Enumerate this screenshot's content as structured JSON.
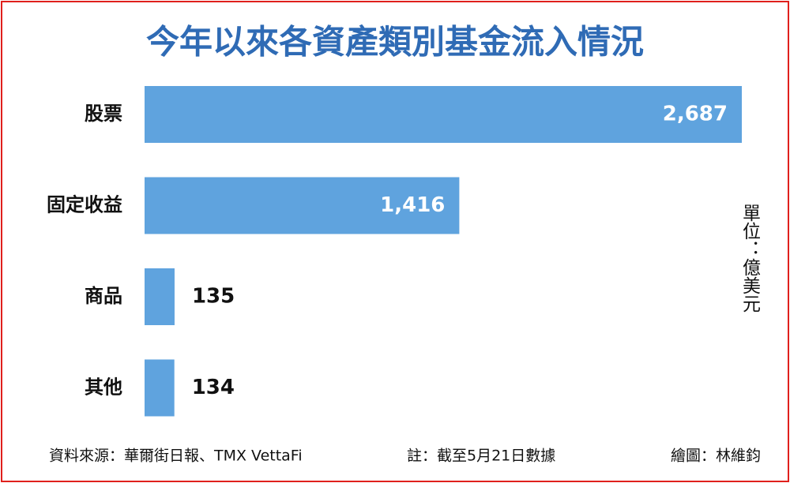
{
  "chart_data": {
    "type": "bar",
    "orientation": "horizontal",
    "title": "今年以來各資產類別基金流入情況",
    "unit": "單位：億美元",
    "categories": [
      "股票",
      "固定收益",
      "商品",
      "其他"
    ],
    "values": [
      2687,
      1416,
      135,
      134
    ],
    "value_labels": [
      "2,687",
      "1,416",
      "135",
      "134"
    ],
    "color": "#5fa3de",
    "source": "資料來源：華爾街日報、TMX VettaFi",
    "note": "註：截至5月21日數據",
    "credit": "繪圖：林維鈞"
  }
}
